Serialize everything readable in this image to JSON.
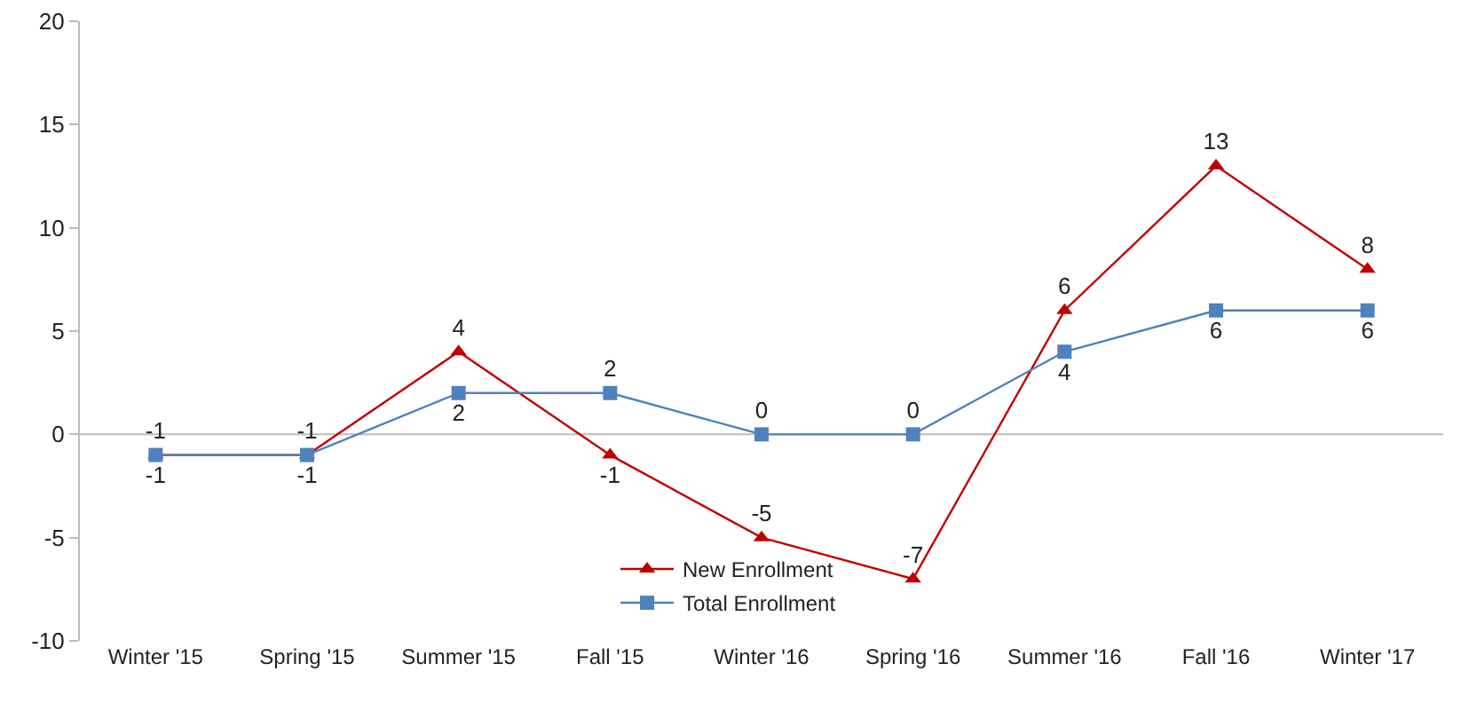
{
  "chart_data": {
    "type": "line",
    "categories": [
      "Winter '15",
      "Spring '15",
      "Summer '15",
      "Fall '15",
      "Winter '16",
      "Spring '16",
      "Summer '16",
      "Fall '16",
      "Winter '17"
    ],
    "series": [
      {
        "name": "New Enrollment",
        "color": "#c00000",
        "marker": "triangle",
        "values": [
          -1,
          -1,
          4,
          -1,
          -5,
          -7,
          6,
          13,
          8
        ]
      },
      {
        "name": "Total Enrollment",
        "color": "#4f81bd",
        "marker": "square",
        "values": [
          -1,
          -1,
          2,
          2,
          0,
          0,
          4,
          6,
          6
        ]
      }
    ],
    "ylim": [
      -10,
      20
    ],
    "yticks": [
      -10,
      -5,
      0,
      5,
      10,
      15,
      20
    ],
    "ref_lines": [
      {
        "axis": "y",
        "value": 0,
        "color": "#bbbbbb"
      }
    ],
    "legend": "bottom",
    "data_labels": true,
    "line_style": "solid"
  }
}
